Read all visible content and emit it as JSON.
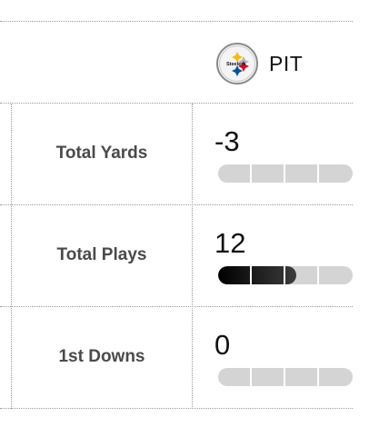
{
  "team": {
    "abbreviation": "PIT",
    "logo_icon": "steelers-logo-icon"
  },
  "colors": {
    "bar_track": "#d4d4d4",
    "bar_fill": "#111111",
    "divider": "#9a9a9a"
  },
  "stats": [
    {
      "label": "Total Yards",
      "value": "-3",
      "bar_fraction": 0
    },
    {
      "label": "Total Plays",
      "value": "12",
      "bar_fraction": 0.58
    },
    {
      "label": "1st Downs",
      "value": "0",
      "bar_fraction": 0
    }
  ]
}
